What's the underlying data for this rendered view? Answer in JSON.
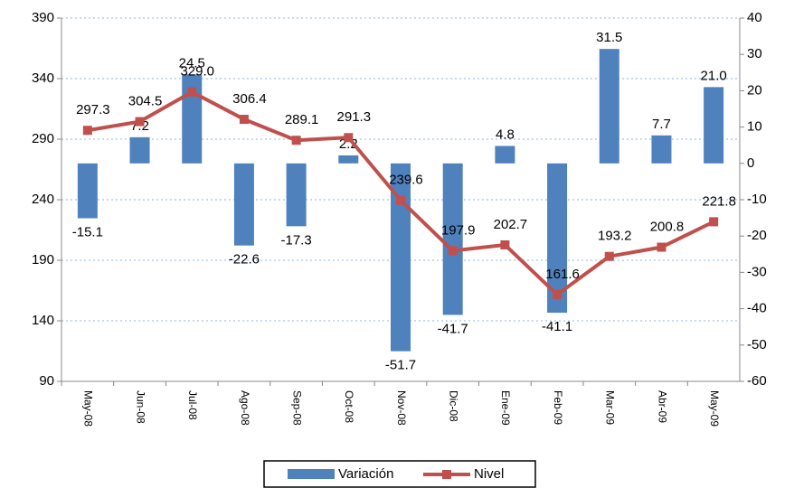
{
  "chart_data": {
    "type": "bar-line",
    "categories": [
      "May-08",
      "Jun-08",
      "Jul-08",
      "Ago-08",
      "Sep-08",
      "Oct-08",
      "Nov-08",
      "Dic-08",
      "Ene-09",
      "Feb-09",
      "Mar-09",
      "Abr-09",
      "May-09"
    ],
    "series": [
      {
        "name": "Variación",
        "type": "bar",
        "axis": "y2",
        "color": "#4f81bd",
        "values": [
          -15.1,
          7.2,
          24.5,
          -22.6,
          -17.3,
          2.2,
          -51.7,
          -41.7,
          4.8,
          -41.1,
          31.5,
          7.7,
          21.0
        ],
        "value_labels": [
          "-15.1",
          "7.2",
          "24.5",
          "-22.6",
          "-17.3",
          "2.2",
          "-51.7",
          "-41.7",
          "4.8",
          "-41.1",
          "31.5",
          "7.7",
          "21.0"
        ]
      },
      {
        "name": "Nivel",
        "type": "line",
        "axis": "y",
        "color": "#c0504d",
        "values": [
          297.3,
          304.5,
          329.0,
          306.4,
          289.1,
          291.3,
          239.6,
          197.9,
          202.7,
          161.6,
          193.2,
          200.8,
          221.8
        ],
        "value_labels": [
          "297.3",
          "304.5",
          "329.0",
          "306.4",
          "289.1",
          "291.3",
          "239.6",
          "197.9",
          "202.7",
          "161.6",
          "193.2",
          "200.8",
          "221.8"
        ]
      }
    ],
    "ylim": [
      90,
      390
    ],
    "yticks": [
      90,
      140,
      190,
      240,
      290,
      340,
      390
    ],
    "y2lim": [
      -60,
      40
    ],
    "y2ticks": [
      -60,
      -50,
      -40,
      -30,
      -20,
      -10,
      0,
      10,
      20,
      30,
      40
    ],
    "grid": true,
    "legend": "bottom"
  }
}
